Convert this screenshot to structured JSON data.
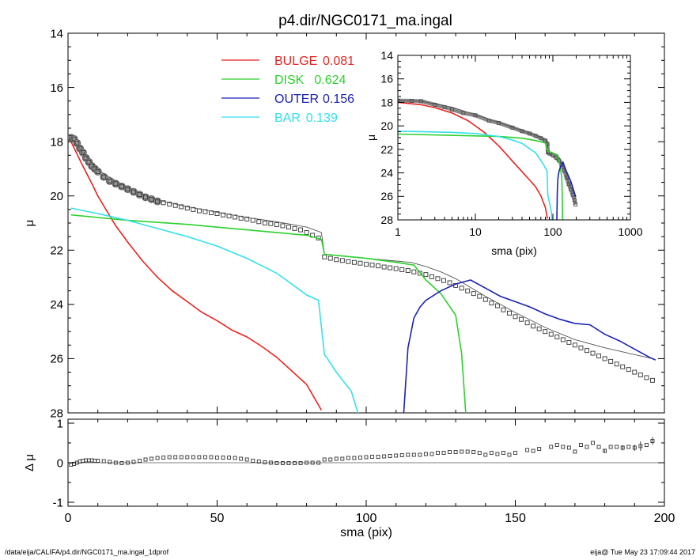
{
  "title": "p4.dir/NGC0171_ma.ingal",
  "footer": {
    "path": "/data/eija/CALIFA/p4.dir/NGC0171_ma.ingal_1dprof",
    "stamp": "eija@  Tue May 23 17:09:44 2017"
  },
  "chart_data": [
    {
      "id": "main",
      "type": "scatter",
      "xlabel": "",
      "ylabel": "μ",
      "xlim": [
        0,
        200
      ],
      "ylim": [
        28,
        14
      ],
      "y_inverted": true,
      "xticks": [
        0,
        50,
        100,
        150,
        200
      ],
      "yticks": [
        14,
        16,
        18,
        20,
        22,
        24,
        26,
        28
      ],
      "legend": [
        {
          "label": "BULGE",
          "value": "0.081",
          "color": "#e8231f"
        },
        {
          "label": "DISK",
          "value": "0.624",
          "color": "#2bd12b"
        },
        {
          "label": "OUTER",
          "value": "0.156",
          "color": "#1a22b4"
        },
        {
          "label": "BAR",
          "value": "0.139",
          "color": "#33e0ea"
        }
      ],
      "series": [
        {
          "role": "data_points",
          "color": "#444444",
          "x": [
            1,
            2,
            3,
            4,
            5,
            6,
            7,
            8,
            9,
            10,
            12,
            14,
            16,
            18,
            20,
            22,
            24,
            26,
            28,
            30,
            32,
            34,
            36,
            38,
            40,
            42,
            44,
            46,
            48,
            50,
            52,
            54,
            56,
            58,
            60,
            62,
            64,
            66,
            68,
            70,
            72,
            74,
            76,
            78,
            80,
            82,
            84,
            86,
            88,
            90,
            92,
            94,
            96,
            98,
            100,
            102,
            104,
            106,
            108,
            110,
            112,
            114,
            116,
            118,
            120,
            122,
            124,
            126,
            128,
            130,
            132,
            134,
            136,
            138,
            140,
            142,
            144,
            146,
            148,
            150,
            152,
            154,
            156,
            158,
            160,
            162,
            164,
            166,
            168,
            170,
            172,
            174,
            176,
            178,
            180,
            182,
            184,
            186,
            188,
            190,
            192,
            194,
            196
          ],
          "y": [
            17.85,
            17.9,
            18.05,
            18.25,
            18.4,
            18.6,
            18.75,
            18.9,
            19.0,
            19.1,
            19.3,
            19.45,
            19.55,
            19.65,
            19.75,
            19.85,
            19.95,
            20.05,
            20.12,
            20.2,
            20.25,
            20.3,
            20.35,
            20.4,
            20.45,
            20.5,
            20.55,
            20.58,
            20.62,
            20.65,
            20.7,
            20.74,
            20.78,
            20.82,
            20.85,
            20.9,
            20.95,
            21.0,
            21.02,
            21.06,
            21.1,
            21.15,
            21.2,
            21.25,
            21.35,
            21.45,
            21.55,
            22.25,
            22.3,
            22.35,
            22.38,
            22.42,
            22.45,
            22.48,
            22.52,
            22.55,
            22.58,
            22.62,
            22.65,
            22.68,
            22.72,
            22.75,
            22.8,
            22.85,
            22.9,
            22.98,
            23.05,
            23.12,
            23.2,
            23.3,
            23.4,
            23.5,
            23.6,
            23.7,
            23.82,
            23.95,
            24.05,
            24.2,
            24.32,
            24.45,
            24.55,
            24.68,
            24.8,
            24.9,
            25.0,
            25.1,
            25.2,
            25.3,
            25.4,
            25.5,
            25.6,
            25.7,
            25.8,
            25.9,
            26.0,
            26.1,
            26.2,
            26.3,
            26.4,
            26.5,
            26.6,
            26.7,
            26.8
          ]
        },
        {
          "role": "model_total",
          "color": "#555555",
          "x": [
            1,
            5,
            10,
            20,
            30,
            40,
            50,
            60,
            70,
            80,
            85,
            86,
            90,
            100,
            110,
            115,
            120,
            125,
            130,
            140,
            150,
            160,
            170,
            180,
            190,
            196
          ],
          "y": [
            17.85,
            18.4,
            19.05,
            19.7,
            20.15,
            20.4,
            20.6,
            20.8,
            20.95,
            21.15,
            21.35,
            22.15,
            22.2,
            22.3,
            22.4,
            22.45,
            22.6,
            22.8,
            23.05,
            23.7,
            24.3,
            24.85,
            25.3,
            25.6,
            25.85,
            26.0
          ]
        },
        {
          "name": "BULGE",
          "color": "#e8231f",
          "x": [
            1,
            3,
            5,
            8,
            10,
            13,
            16,
            20,
            25,
            30,
            35,
            40,
            45,
            50,
            55,
            60,
            65,
            70,
            75,
            80,
            85
          ],
          "y": [
            18.0,
            18.45,
            18.9,
            19.55,
            20.0,
            20.55,
            21.1,
            21.7,
            22.4,
            23.0,
            23.5,
            23.9,
            24.3,
            24.6,
            24.95,
            25.2,
            25.55,
            25.95,
            26.45,
            26.95,
            27.9
          ]
        },
        {
          "name": "DISK",
          "color": "#2bd12b",
          "x": [
            1,
            20,
            40,
            60,
            80,
            85,
            86,
            100,
            110,
            116,
            120,
            125,
            130,
            132,
            134
          ],
          "y": [
            20.7,
            20.9,
            21.05,
            21.25,
            21.45,
            21.6,
            22.15,
            22.3,
            22.45,
            22.55,
            23.1,
            23.6,
            24.4,
            25.8,
            29.0
          ]
        },
        {
          "name": "OUTER",
          "color": "#1a22b4",
          "x": [
            112,
            114,
            116,
            118,
            120,
            125,
            130,
            135,
            140,
            145,
            150,
            155,
            160,
            165,
            170,
            175,
            180,
            185,
            190,
            195,
            197
          ],
          "y": [
            29.0,
            25.6,
            24.5,
            24.1,
            23.85,
            23.5,
            23.25,
            23.1,
            23.4,
            23.7,
            23.9,
            24.1,
            24.35,
            24.55,
            24.7,
            24.75,
            25.1,
            25.35,
            25.65,
            25.95,
            26.05
          ]
        },
        {
          "name": "BAR",
          "color": "#33e0ea",
          "x": [
            1,
            10,
            20,
            30,
            40,
            50,
            60,
            70,
            75,
            80,
            84,
            86,
            87,
            90,
            95,
            100
          ],
          "y": [
            20.45,
            20.65,
            20.9,
            21.2,
            21.5,
            21.85,
            22.3,
            22.85,
            23.25,
            23.65,
            23.85,
            25.85,
            26.0,
            26.5,
            27.2,
            29.0
          ]
        }
      ]
    },
    {
      "id": "inset",
      "type": "line",
      "xlabel": "sma (pix)",
      "ylabel": "μ",
      "x_scale": "log",
      "xlim": [
        1,
        1000
      ],
      "ylim": [
        28,
        14
      ],
      "y_inverted": true,
      "xticks": [
        1,
        10,
        100,
        1000
      ],
      "yticks": [
        14,
        16,
        18,
        20,
        22,
        24,
        26,
        28
      ],
      "series": [
        {
          "role": "data_points",
          "color": "#444444",
          "x": [
            1,
            1.5,
            2,
            3,
            4,
            5,
            7,
            10,
            15,
            20,
            30,
            40,
            50,
            60,
            70,
            80,
            85,
            86,
            90,
            100,
            110,
            120,
            130,
            140,
            150,
            160,
            170,
            180,
            190,
            196
          ],
          "y": [
            17.85,
            17.87,
            17.9,
            18.2,
            18.4,
            18.6,
            18.9,
            19.1,
            19.55,
            19.75,
            20.15,
            20.45,
            20.65,
            20.85,
            21.05,
            21.25,
            21.55,
            22.25,
            22.35,
            22.5,
            22.7,
            22.95,
            23.3,
            23.8,
            24.4,
            24.95,
            25.4,
            25.85,
            26.3,
            26.7
          ]
        },
        {
          "role": "model_total",
          "color": "#555555",
          "x": [
            1,
            2,
            5,
            10,
            20,
            40,
            60,
            80,
            85,
            86,
            100,
            115,
            130,
            160,
            196
          ],
          "y": [
            17.85,
            17.9,
            18.4,
            19.05,
            19.7,
            20.4,
            20.8,
            21.15,
            21.35,
            22.15,
            22.3,
            22.45,
            23.05,
            24.85,
            26.0
          ]
        },
        {
          "name": "BULGE",
          "color": "#e8231f",
          "x": [
            1,
            2,
            3,
            5,
            8,
            10,
            13,
            16,
            20,
            25,
            30,
            40,
            50,
            60,
            70,
            80,
            85
          ],
          "y": [
            18.0,
            18.2,
            18.45,
            18.9,
            19.55,
            20.0,
            20.55,
            21.1,
            21.7,
            22.4,
            23.0,
            23.9,
            24.6,
            25.2,
            25.95,
            26.95,
            27.9
          ]
        },
        {
          "name": "DISK",
          "color": "#2bd12b",
          "x": [
            1,
            10,
            20,
            40,
            60,
            80,
            86,
            100,
            116,
            125,
            130,
            132,
            134
          ],
          "y": [
            20.7,
            20.85,
            20.9,
            21.05,
            21.25,
            21.45,
            22.15,
            22.3,
            22.55,
            23.6,
            24.4,
            25.8,
            29.0
          ]
        },
        {
          "name": "OUTER",
          "color": "#1a22b4",
          "x": [
            112,
            114,
            116,
            120,
            125,
            135,
            150,
            170,
            197
          ],
          "y": [
            29.0,
            25.6,
            24.5,
            23.85,
            23.5,
            23.1,
            23.9,
            24.7,
            26.05
          ]
        },
        {
          "name": "BAR",
          "color": "#33e0ea",
          "x": [
            1,
            5,
            10,
            20,
            30,
            40,
            60,
            75,
            84,
            86,
            90,
            95,
            100
          ],
          "y": [
            20.45,
            20.55,
            20.65,
            20.9,
            21.2,
            21.5,
            22.3,
            23.25,
            23.85,
            25.85,
            26.5,
            27.2,
            29.0
          ]
        }
      ]
    },
    {
      "id": "residual",
      "type": "scatter",
      "xlabel": "sma (pix)",
      "ylabel": "Δ μ",
      "xlim": [
        0,
        200
      ],
      "ylim": [
        -1.1,
        1.1
      ],
      "xticks": [
        0,
        50,
        100,
        150,
        200
      ],
      "yticks": [
        -1,
        0,
        1
      ],
      "zero_line": true,
      "series": [
        {
          "role": "residuals",
          "color": "#444444",
          "x": [
            1,
            2,
            3,
            4,
            5,
            6,
            7,
            8,
            9,
            10,
            12,
            14,
            16,
            18,
            20,
            22,
            24,
            26,
            28,
            30,
            32,
            34,
            36,
            38,
            40,
            42,
            44,
            46,
            48,
            50,
            52,
            54,
            56,
            58,
            60,
            62,
            64,
            66,
            68,
            70,
            72,
            74,
            76,
            78,
            80,
            82,
            84,
            86,
            88,
            90,
            92,
            94,
            96,
            98,
            100,
            102,
            104,
            106,
            108,
            110,
            112,
            114,
            116,
            118,
            120,
            122,
            124,
            126,
            128,
            130,
            132,
            134,
            136,
            138,
            140,
            142,
            144,
            146,
            148,
            150,
            154,
            156,
            158,
            162,
            164,
            166,
            168,
            170,
            172,
            174,
            176,
            178,
            180,
            182,
            184,
            186,
            188,
            190,
            192,
            194,
            196
          ],
          "y": [
            -0.05,
            -0.03,
            0.0,
            0.03,
            0.05,
            0.06,
            0.06,
            0.06,
            0.05,
            0.05,
            0.04,
            0.02,
            0.0,
            -0.01,
            0.0,
            0.02,
            0.05,
            0.08,
            0.1,
            0.12,
            0.13,
            0.14,
            0.14,
            0.14,
            0.14,
            0.14,
            0.14,
            0.14,
            0.14,
            0.13,
            0.13,
            0.13,
            0.12,
            0.1,
            0.08,
            0.05,
            0.03,
            0.01,
            0.0,
            -0.01,
            -0.01,
            -0.01,
            -0.01,
            -0.01,
            0.0,
            0.0,
            0.0,
            0.08,
            0.08,
            0.1,
            0.1,
            0.12,
            0.12,
            0.13,
            0.14,
            0.15,
            0.15,
            0.16,
            0.17,
            0.18,
            0.19,
            0.2,
            0.2,
            0.2,
            0.22,
            0.22,
            0.25,
            0.25,
            0.27,
            0.27,
            0.28,
            0.28,
            0.27,
            0.25,
            0.2,
            0.25,
            0.22,
            0.25,
            0.2,
            0.25,
            0.32,
            0.3,
            0.35,
            0.4,
            0.45,
            0.4,
            0.38,
            0.28,
            0.45,
            0.4,
            0.5,
            0.4,
            0.3,
            0.4,
            0.4,
            0.38,
            0.4,
            0.38,
            0.42,
            0.45,
            0.55
          ],
          "errors": [
            0,
            0,
            0,
            0,
            0,
            0,
            0,
            0,
            0,
            0,
            0,
            0,
            0,
            0,
            0,
            0,
            0,
            0,
            0,
            0,
            0,
            0,
            0,
            0,
            0,
            0,
            0,
            0,
            0,
            0,
            0,
            0,
            0,
            0,
            0,
            0,
            0,
            0,
            0,
            0,
            0,
            0,
            0,
            0,
            0,
            0,
            0,
            0,
            0,
            0,
            0,
            0,
            0,
            0,
            0,
            0,
            0,
            0,
            0,
            0,
            0,
            0,
            0,
            0,
            0,
            0,
            0,
            0,
            0,
            0,
            0,
            0,
            0,
            0,
            0,
            0,
            0,
            0,
            0,
            0,
            0,
            0,
            0,
            0,
            0,
            0,
            0,
            0,
            0,
            0,
            0,
            0,
            0.05,
            0,
            0,
            0.07,
            0,
            0.08,
            0.12,
            0,
            0.1
          ]
        }
      ]
    }
  ]
}
